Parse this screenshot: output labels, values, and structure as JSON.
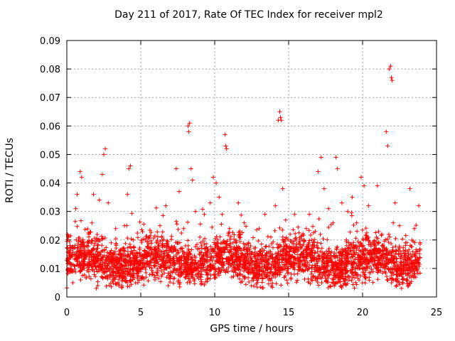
{
  "chart_data": {
    "type": "scatter",
    "title": "Day 211 of 2017, Rate Of TEC Index for receiver mpl2",
    "xlabel": "GPS time / hours",
    "ylabel": "ROTI / TECUs",
    "xlim": [
      0,
      25
    ],
    "ylim": [
      0,
      0.09
    ],
    "x_ticks": [
      0,
      5,
      10,
      15,
      20,
      25
    ],
    "y_ticks": [
      0,
      0.01,
      0.02,
      0.03,
      0.04,
      0.05,
      0.06,
      0.07,
      0.08,
      0.09
    ],
    "x_tick_labels": [
      "0",
      "5",
      "10",
      "15",
      "20",
      "25"
    ],
    "y_tick_labels": [
      "0",
      "0.01",
      "0.02",
      "0.03",
      "0.04",
      "0.05",
      "0.06",
      "0.07",
      "0.08",
      "0.09"
    ],
    "grid": true,
    "marker": "+",
    "color": "#ff0000",
    "series": [
      {
        "name": "ROTI",
        "points": [
          [
            0.1,
            0.021
          ],
          [
            0.2,
            0.012
          ],
          [
            0.3,
            0.009
          ],
          [
            0.4,
            0.005
          ],
          [
            0.5,
            0.015
          ],
          [
            0.6,
            0.031
          ],
          [
            0.7,
            0.036
          ],
          [
            0.9,
            0.044
          ],
          [
            1.0,
            0.042
          ],
          [
            1.1,
            0.018
          ],
          [
            1.3,
            0.014
          ],
          [
            1.5,
            0.022
          ],
          [
            1.7,
            0.026
          ],
          [
            1.8,
            0.036
          ],
          [
            2.0,
            0.003
          ],
          [
            2.1,
            0.004
          ],
          [
            2.2,
            0.034
          ],
          [
            2.4,
            0.043
          ],
          [
            2.5,
            0.05
          ],
          [
            2.6,
            0.052
          ],
          [
            2.8,
            0.033
          ],
          [
            3.0,
            0.019
          ],
          [
            3.3,
            0.024
          ],
          [
            3.6,
            0.015
          ],
          [
            3.9,
            0.025
          ],
          [
            4.1,
            0.036
          ],
          [
            4.2,
            0.045
          ],
          [
            4.3,
            0.046
          ],
          [
            4.5,
            0.02
          ],
          [
            4.8,
            0.005
          ],
          [
            5.0,
            0.009
          ],
          [
            5.3,
            0.016
          ],
          [
            5.6,
            0.021
          ],
          [
            6.0,
            0.014
          ],
          [
            6.3,
            0.025
          ],
          [
            6.7,
            0.032
          ],
          [
            7.0,
            0.017
          ],
          [
            7.4,
            0.045
          ],
          [
            7.6,
            0.037
          ],
          [
            7.9,
            0.024
          ],
          [
            8.2,
            0.06
          ],
          [
            8.25,
            0.058
          ],
          [
            8.3,
            0.061
          ],
          [
            8.4,
            0.045
          ],
          [
            8.5,
            0.041
          ],
          [
            8.7,
            0.03
          ],
          [
            9.0,
            0.021
          ],
          [
            9.3,
            0.029
          ],
          [
            9.7,
            0.033
          ],
          [
            9.9,
            0.042
          ],
          [
            10.1,
            0.04
          ],
          [
            10.3,
            0.035
          ],
          [
            10.5,
            0.029
          ],
          [
            10.7,
            0.057
          ],
          [
            10.75,
            0.053
          ],
          [
            10.8,
            0.052
          ],
          [
            11.0,
            0.024
          ],
          [
            11.3,
            0.017
          ],
          [
            11.6,
            0.033
          ],
          [
            12.0,
            0.026
          ],
          [
            12.3,
            0.019
          ],
          [
            12.7,
            0.014
          ],
          [
            13.0,
            0.024
          ],
          [
            13.4,
            0.029
          ],
          [
            13.8,
            0.021
          ],
          [
            14.1,
            0.032
          ],
          [
            14.3,
            0.062
          ],
          [
            14.4,
            0.065
          ],
          [
            14.45,
            0.063
          ],
          [
            14.5,
            0.062
          ],
          [
            14.6,
            0.038
          ],
          [
            14.8,
            0.027
          ],
          [
            15.1,
            0.022
          ],
          [
            15.4,
            0.029
          ],
          [
            15.7,
            0.019
          ],
          [
            16.0,
            0.016
          ],
          [
            16.4,
            0.029
          ],
          [
            16.8,
            0.023
          ],
          [
            17.0,
            0.044
          ],
          [
            17.2,
            0.049
          ],
          [
            17.4,
            0.038
          ],
          [
            17.7,
            0.031
          ],
          [
            18.0,
            0.026
          ],
          [
            18.2,
            0.049
          ],
          [
            18.3,
            0.045
          ],
          [
            18.6,
            0.033
          ],
          [
            19.0,
            0.03
          ],
          [
            19.3,
            0.035
          ],
          [
            19.6,
            0.026
          ],
          [
            19.9,
            0.042
          ],
          [
            20.1,
            0.039
          ],
          [
            20.4,
            0.032
          ],
          [
            20.7,
            0.019
          ],
          [
            21.0,
            0.039
          ],
          [
            21.3,
            0.022
          ],
          [
            21.6,
            0.058
          ],
          [
            21.7,
            0.053
          ],
          [
            21.8,
            0.08
          ],
          [
            21.9,
            0.081
          ],
          [
            21.95,
            0.077
          ],
          [
            22.0,
            0.076
          ],
          [
            22.2,
            0.033
          ],
          [
            22.5,
            0.025
          ],
          [
            22.9,
            0.019
          ],
          [
            23.2,
            0.038
          ],
          [
            23.5,
            0.024
          ],
          [
            23.8,
            0.032
          ]
        ]
      }
    ]
  }
}
